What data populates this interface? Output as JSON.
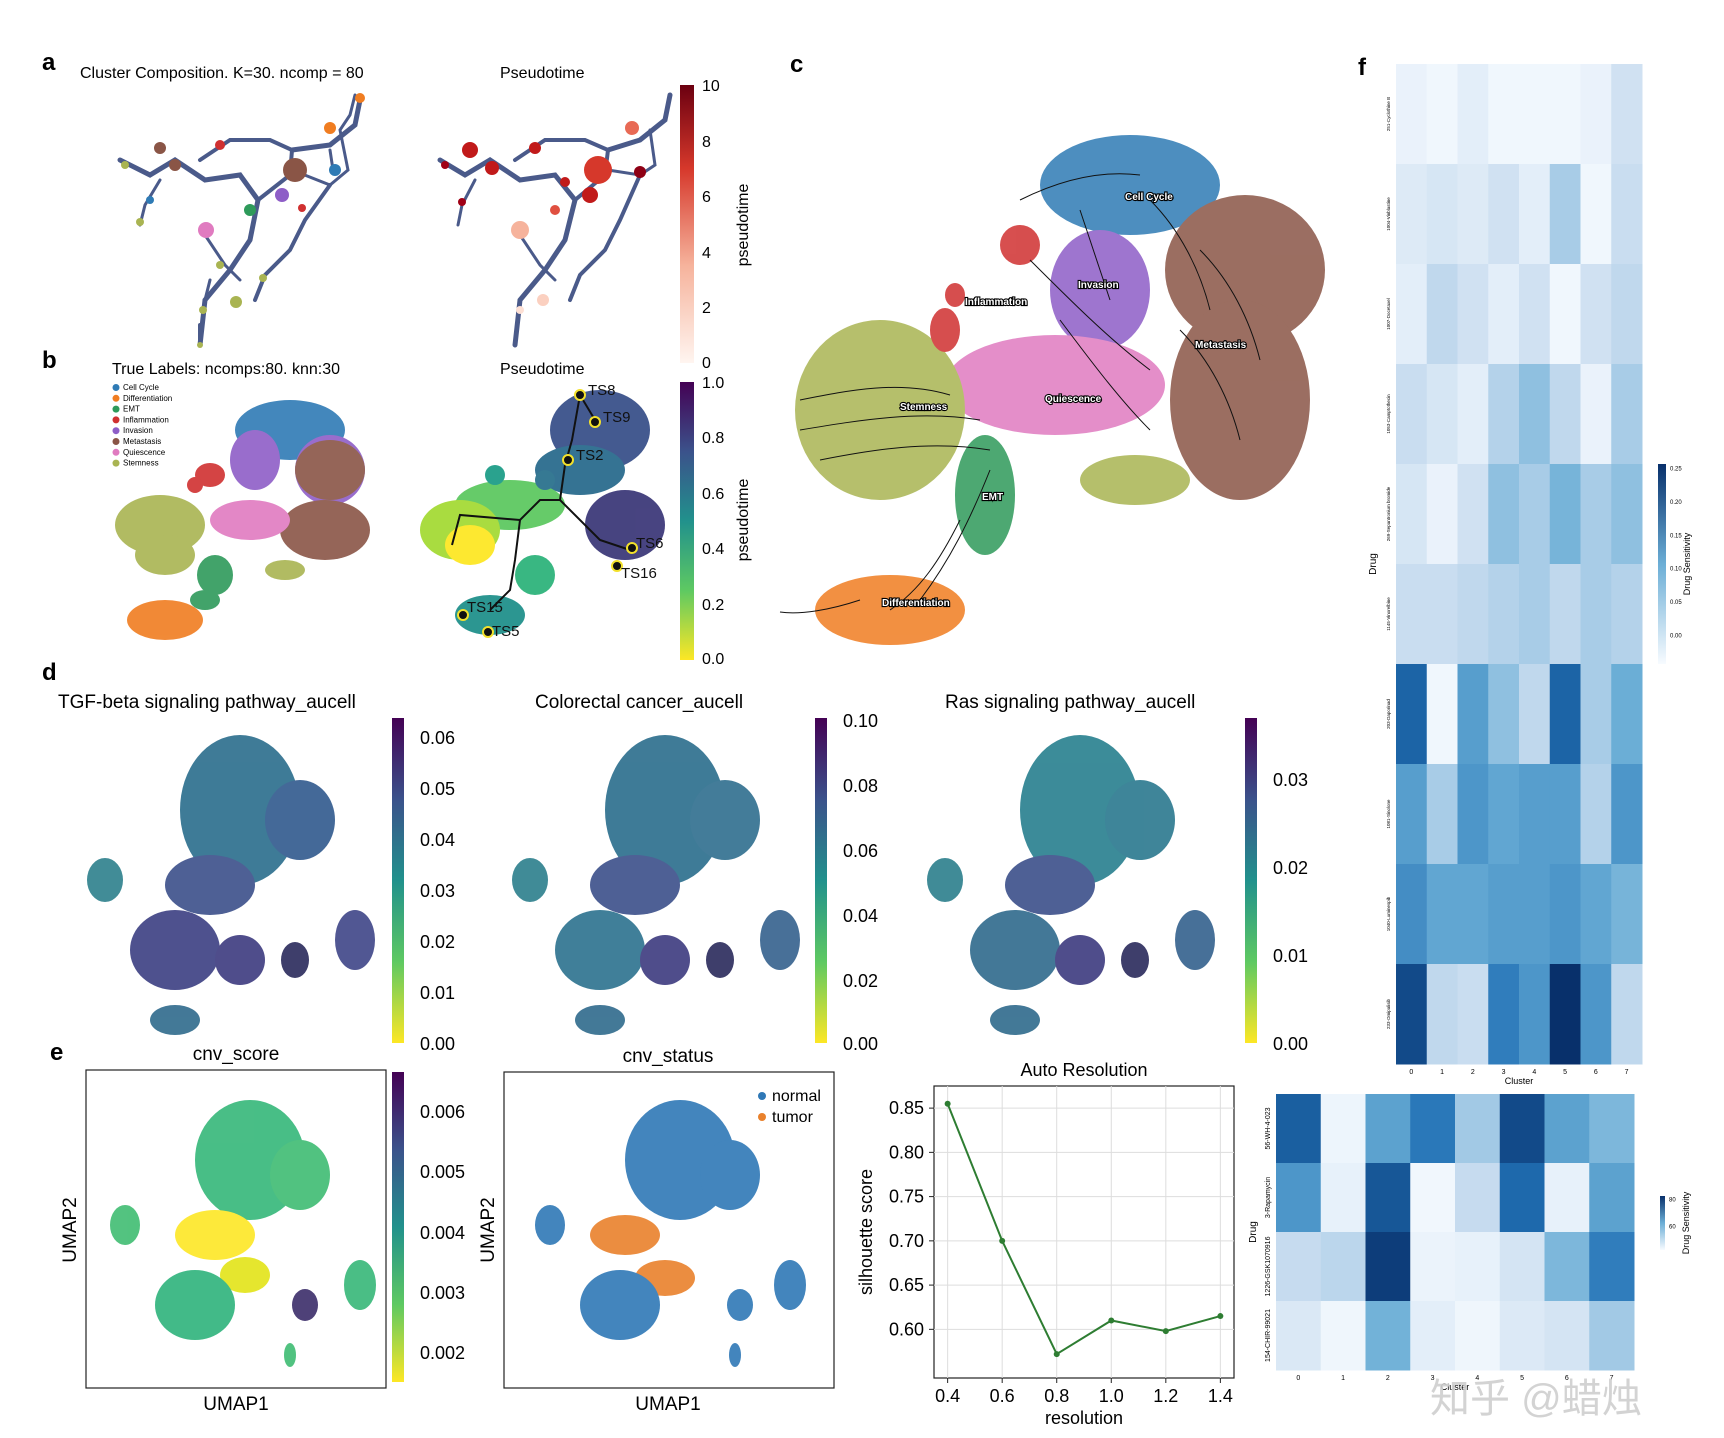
{
  "panel_labels": [
    "a",
    "b",
    "c",
    "d",
    "e",
    "f"
  ],
  "panel_a": {
    "title_left": "Cluster Composition. K=30. ncomp = 80",
    "title_right": "Pseudotime",
    "colorbar_label": "pseudotime",
    "colorbar_ticks": [
      "10",
      "8",
      "6",
      "4",
      "2",
      "0"
    ]
  },
  "panel_b": {
    "title_left": "True Labels: ncomps:80. knn:30",
    "title_right": "Pseudotime",
    "legend": [
      {
        "label": "Cell Cycle",
        "color": "#2f7bb5"
      },
      {
        "label": "Differentiation",
        "color": "#f07d21"
      },
      {
        "label": "EMT",
        "color": "#2e9a5a"
      },
      {
        "label": "Inflammation",
        "color": "#d03030"
      },
      {
        "label": "Invasion",
        "color": "#8e5ec7"
      },
      {
        "label": "Metastasis",
        "color": "#8a5546"
      },
      {
        "label": "Quiescence",
        "color": "#e07bc0"
      },
      {
        "label": "Stemness",
        "color": "#a9b452"
      }
    ],
    "terminal_states": [
      "TS8",
      "TS9",
      "TS2",
      "TS6",
      "TS16",
      "TS15",
      "TS5"
    ],
    "colorbar_label": "pseudotime",
    "colorbar_ticks": [
      "1.0",
      "0.8",
      "0.6",
      "0.4",
      "0.2",
      "0.0"
    ]
  },
  "panel_c": {
    "clusters": [
      "Cell Cycle",
      "Invasion",
      "Inflammation",
      "Metastasis",
      "Stemness",
      "Quiescence",
      "EMT",
      "Differentiation"
    ]
  },
  "panel_d": {
    "plots": [
      {
        "title": "TGF-beta signaling pathway_aucell",
        "ticks": [
          "0.06",
          "0.05",
          "0.04",
          "0.03",
          "0.02",
          "0.01",
          "0.00"
        ]
      },
      {
        "title": "Colorectal cancer_aucell",
        "ticks": [
          "0.10",
          "0.08",
          "0.06",
          "0.04",
          "0.02",
          "0.00"
        ]
      },
      {
        "title": "Ras signaling pathway_aucell",
        "ticks": [
          "0.03",
          "0.02",
          "0.01",
          "0.00"
        ]
      }
    ]
  },
  "panel_e": {
    "cnv_score": {
      "title": "cnv_score",
      "xlabel": "UMAP1",
      "ylabel": "UMAP2",
      "ticks": [
        "0.006",
        "0.005",
        "0.004",
        "0.003",
        "0.002"
      ]
    },
    "cnv_status": {
      "title": "cnv_status",
      "xlabel": "UMAP1",
      "ylabel": "UMAP2",
      "legend": [
        {
          "label": "normal",
          "color": "#2f78b6"
        },
        {
          "label": "tumor",
          "color": "#e9812c"
        }
      ]
    }
  },
  "panel_f": {
    "top_heatmap": {
      "ylabel": "Drug",
      "xlabel": "Cluster",
      "colorbar_label": "Drug Sensitivity",
      "colorbar_ticks": [
        "0.25",
        "0.20",
        "0.15",
        "0.10",
        "0.05",
        "0.00"
      ],
      "x_ticks": [
        "0",
        "1",
        "2",
        "3",
        "4",
        "5",
        "6",
        "7"
      ],
      "drugs": [
        "251-Cyclothine B",
        "1004-Vinblastine",
        "1007-Docetaxel",
        "1053-Camptothecin",
        "269-Sepantronium bromide",
        "1145-Vinorelbine",
        "203-Daporinad",
        "1081-Sinolone",
        "1040-Luminespib",
        "233-Omipalisib"
      ],
      "values": [
        [
          0.02,
          0.01,
          0.03,
          0.01,
          0.01,
          0.01,
          0.02,
          0.06
        ],
        [
          0.04,
          0.05,
          0.04,
          0.06,
          0.03,
          0.1,
          0.01,
          0.07
        ],
        [
          0.03,
          0.08,
          0.06,
          0.03,
          0.06,
          0.01,
          0.06,
          0.08
        ],
        [
          0.07,
          0.05,
          0.03,
          0.09,
          0.12,
          0.08,
          0.02,
          0.1
        ],
        [
          0.05,
          0.02,
          0.06,
          0.12,
          0.1,
          0.14,
          0.1,
          0.12
        ],
        [
          0.07,
          0.07,
          0.08,
          0.09,
          0.1,
          0.08,
          0.1,
          0.09
        ],
        [
          0.24,
          0.01,
          0.17,
          0.12,
          0.08,
          0.24,
          0.1,
          0.15
        ],
        [
          0.17,
          0.1,
          0.18,
          0.16,
          0.17,
          0.17,
          0.09,
          0.18
        ],
        [
          0.19,
          0.16,
          0.16,
          0.17,
          0.17,
          0.18,
          0.16,
          0.14
        ],
        [
          0.27,
          0.08,
          0.07,
          0.21,
          0.18,
          0.3,
          0.18,
          0.08
        ]
      ]
    },
    "bottom_heatmap": {
      "ylabel": "Drug",
      "xlabel": "Cluster",
      "colorbar_label": "Drug Sensitivity",
      "colorbar_ticks": [
        "80",
        "60"
      ],
      "x_ticks": [
        "0",
        "1",
        "2",
        "3",
        "4",
        "5",
        "6",
        "7"
      ],
      "drugs": [
        "56-WH-4-023",
        "3-Rapamycin",
        "1226-GSK1070916",
        "154-CHIR-99021"
      ],
      "values": [
        [
          0.82,
          0.05,
          0.55,
          0.72,
          0.35,
          0.9,
          0.55,
          0.45
        ],
        [
          0.6,
          0.08,
          0.85,
          0.03,
          0.25,
          0.78,
          0.08,
          0.55
        ],
        [
          0.25,
          0.28,
          0.95,
          0.06,
          0.08,
          0.18,
          0.45,
          0.7
        ],
        [
          0.15,
          0.04,
          0.48,
          0.1,
          0.04,
          0.14,
          0.18,
          0.35
        ]
      ]
    }
  },
  "chart_data": {
    "type": "line",
    "title": "Auto Resolution",
    "xlabel": "resolution",
    "ylabel": "silhouette score",
    "x": [
      0.4,
      0.6,
      0.8,
      1.0,
      1.2,
      1.4
    ],
    "series": [
      {
        "name": "silhouette score",
        "values": [
          0.855,
          0.7,
          0.572,
          0.61,
          0.598,
          0.615
        ]
      }
    ],
    "xlim": [
      0.35,
      1.45
    ],
    "ylim": [
      0.545,
      0.875
    ],
    "x_ticks": [
      "0.4",
      "0.6",
      "0.8",
      "1.0",
      "1.2",
      "1.4"
    ],
    "y_ticks": [
      "0.85",
      "0.80",
      "0.75",
      "0.70",
      "0.65",
      "0.60"
    ],
    "line_color": "#2e7d32",
    "grid": true
  },
  "watermark": "知乎 @蜡烛"
}
